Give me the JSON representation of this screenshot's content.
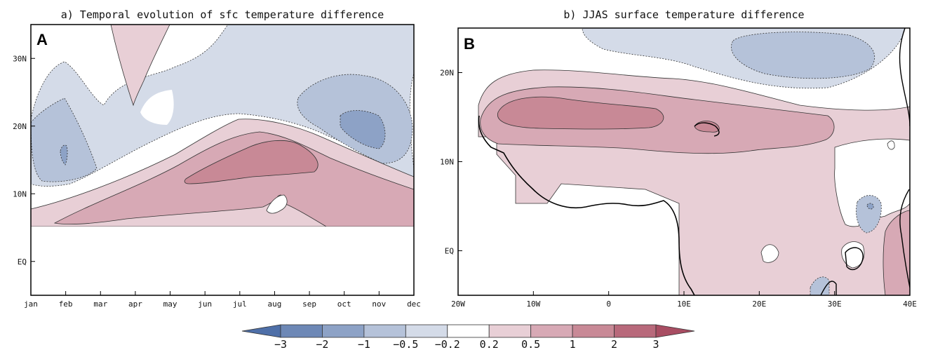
{
  "chart_data": [
    {
      "type": "contour",
      "panel_label": "A",
      "title": "a) Temporal evolution of sfc temperature difference",
      "x_ticks": [
        "jan",
        "feb",
        "mar",
        "apr",
        "may",
        "jun",
        "jul",
        "aug",
        "sep",
        "oct",
        "nov",
        "dec"
      ],
      "y_ticks": [
        "EQ",
        "10N",
        "20N",
        "30N"
      ],
      "ylim": [
        -5,
        35
      ],
      "features": [
        {
          "sign": "positive",
          "level_range": "2 to 3",
          "center": {
            "month": "aug",
            "lat": 14
          }
        },
        {
          "sign": "positive",
          "level_range": "1 to 2",
          "from": "jan",
          "to": "dec",
          "lat_range": [
            6,
            18
          ]
        },
        {
          "sign": "positive",
          "level_range": "0.2 to 0.5",
          "center": {
            "month": "apr",
            "lat": 32
          }
        },
        {
          "sign": "negative",
          "level_range": "-1 to -0.5",
          "center": {
            "month": "nov",
            "lat": 20
          }
        },
        {
          "sign": "negative",
          "level_range": "-1 to -0.5",
          "center": {
            "month": "feb",
            "lat": 16
          }
        },
        {
          "sign": "negative",
          "level_range": "-0.5 to -0.2",
          "center": {
            "month": "jul",
            "lat": 30
          }
        }
      ]
    },
    {
      "type": "contour-map",
      "panel_label": "B",
      "title": "b) JJAS surface temperature difference",
      "x_ticks": [
        "20W",
        "10W",
        "0",
        "10E",
        "20E",
        "30E",
        "40E"
      ],
      "y_ticks": [
        "EQ",
        "10N",
        "20N"
      ],
      "xlim": [
        -20,
        40
      ],
      "ylim": [
        -5,
        25
      ],
      "features": [
        {
          "sign": "positive",
          "level_range": "1 to 2",
          "center": {
            "lon": -7,
            "lat": 15
          }
        },
        {
          "sign": "positive",
          "level_range": "0.5 to 1",
          "lon_range": [
            -17,
            27
          ],
          "lat_range": [
            11,
            18
          ]
        },
        {
          "sign": "positive",
          "level_range": "0.2 to 0.5",
          "lon_range": [
            -17,
            38
          ],
          "lat_range": [
            -5,
            20
          ]
        },
        {
          "sign": "negative",
          "level_range": "-1 to -0.5",
          "center": {
            "lon": 28,
            "lat": 23
          }
        },
        {
          "sign": "negative",
          "level_range": "-0.5 to -0.2",
          "center": {
            "lon": 35,
            "lat": 5
          }
        }
      ]
    }
  ],
  "colorbar": {
    "labels": [
      "−3",
      "−2",
      "−1",
      "−0.5",
      "−0.2",
      "0.2",
      "0.5",
      "1",
      "2",
      "3"
    ],
    "colors": [
      "#4e6fa8",
      "#6d88b6",
      "#8da2c6",
      "#b5c2d9",
      "#d4dbe8",
      "#ffffff",
      "#e8cfd6",
      "#d7a9b5",
      "#c88996",
      "#b8697b",
      "#a84d62"
    ]
  }
}
